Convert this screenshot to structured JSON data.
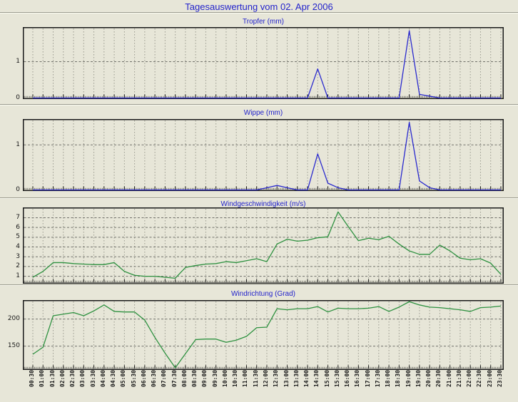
{
  "page": {
    "title": "Tagesauswertung vom 02. Apr 2006",
    "background": "#e7e6d8",
    "title_color": "#2323cb"
  },
  "x_axis": {
    "categories": [
      "00:30",
      "01:00",
      "01:30",
      "02:00",
      "02:30",
      "03:00",
      "03:30",
      "04:00",
      "04:30",
      "05:00",
      "05:30",
      "06:00",
      "06:30",
      "07:00",
      "07:30",
      "08:00",
      "08:30",
      "09:00",
      "09:30",
      "10:00",
      "10:30",
      "11:00",
      "11:30",
      "12:00",
      "12:30",
      "13:00",
      "13:30",
      "14:00",
      "14:30",
      "15:00",
      "15:30",
      "16:00",
      "16:30",
      "17:00",
      "17:30",
      "18:00",
      "18:30",
      "19:00",
      "19:30",
      "20:00",
      "20:30",
      "21:00",
      "21:30",
      "22:00",
      "22:30",
      "23:00",
      "23:30"
    ]
  },
  "chart_data": [
    {
      "type": "line",
      "title": "Tropfer (mm)",
      "line_color": "#2a2ace",
      "y_ticks": [
        1,
        0
      ],
      "grid_y": [
        1
      ],
      "ylim": [
        0,
        1.92
      ],
      "values": [
        0,
        0,
        0,
        0,
        0,
        0,
        0,
        0,
        0,
        0,
        0,
        0,
        0,
        0,
        0,
        0,
        0,
        0,
        0,
        0,
        0,
        0,
        0,
        0,
        0,
        0,
        0,
        0,
        0.8,
        0,
        0,
        0,
        0,
        0,
        0,
        0,
        0,
        1.85,
        0.1,
        0.05,
        0,
        0,
        0,
        0,
        0,
        0,
        0
      ]
    },
    {
      "type": "line",
      "title": "Wippe (mm)",
      "line_color": "#2a2ace",
      "y_ticks": [
        1,
        0
      ],
      "grid_y": [
        1
      ],
      "ylim": [
        0,
        1.55
      ],
      "values": [
        0,
        0,
        0,
        0,
        0,
        0,
        0,
        0,
        0,
        0,
        0,
        0,
        0,
        0,
        0,
        0,
        0,
        0,
        0,
        0,
        0,
        0,
        0,
        0.05,
        0.1,
        0.05,
        0,
        0,
        0.8,
        0.15,
        0.05,
        0,
        0,
        0,
        0,
        0,
        0,
        1.5,
        0.2,
        0.05,
        0,
        0,
        0,
        0,
        0,
        0,
        0
      ]
    },
    {
      "type": "line",
      "title": "Windgeschwindigkeit (m/s)",
      "line_color": "#2e9140",
      "y_ticks": [
        7,
        6,
        5,
        4,
        3,
        2,
        1
      ],
      "grid_y": [
        1,
        2,
        3,
        4,
        5,
        6,
        7
      ],
      "ylim": [
        0.35,
        7.95
      ],
      "values": [
        0.9,
        1.5,
        2.4,
        2.4,
        2.3,
        2.25,
        2.2,
        2.2,
        2.4,
        1.5,
        1.1,
        1.0,
        1.0,
        0.9,
        0.8,
        1.9,
        2.1,
        2.25,
        2.3,
        2.5,
        2.4,
        2.6,
        2.8,
        2.5,
        4.3,
        4.8,
        4.6,
        4.7,
        4.95,
        5.05,
        7.6,
        6.1,
        4.65,
        4.9,
        4.75,
        5.1,
        4.3,
        3.6,
        3.25,
        3.25,
        4.2,
        3.6,
        2.85,
        2.7,
        2.8,
        2.35,
        1.2
      ]
    },
    {
      "type": "line",
      "title": "Windrichtung (Grad)",
      "line_color": "#2e9140",
      "y_ticks": [
        200,
        150
      ],
      "grid_y": [
        150,
        200
      ],
      "ylim": [
        108,
        233
      ],
      "values": [
        135,
        148,
        206,
        209,
        212,
        206,
        215,
        226,
        214,
        213,
        213,
        198,
        166,
        137,
        110,
        136,
        162,
        163,
        163,
        157,
        161,
        168,
        184,
        185,
        219,
        217,
        219,
        219,
        223,
        213,
        220,
        219,
        219,
        220,
        223,
        214,
        222,
        232,
        226,
        222,
        221,
        219,
        217,
        214,
        221,
        222,
        224
      ]
    }
  ]
}
